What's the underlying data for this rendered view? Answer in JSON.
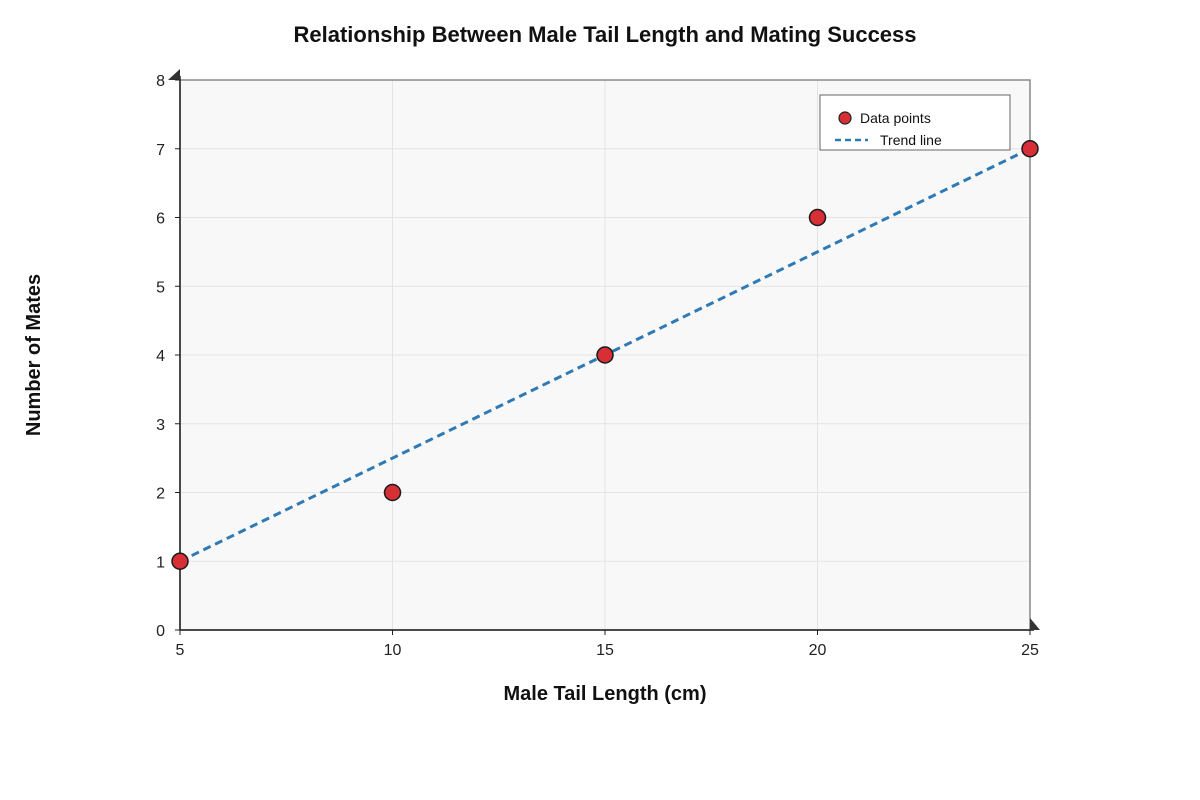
{
  "chart_data": {
    "type": "scatter",
    "title": "Relationship Between Male Tail Length and Mating Success",
    "xlabel": "Male Tail Length (cm)",
    "ylabel": "Number of Mates",
    "xlim": [
      5,
      25
    ],
    "ylim": [
      0,
      8
    ],
    "xticks": [
      5,
      10,
      15,
      20,
      25
    ],
    "yticks": [
      0,
      1,
      2,
      3,
      4,
      5,
      6,
      7,
      8
    ],
    "grid": true,
    "legend_position": "top-right",
    "series": [
      {
        "name": "Data points",
        "kind": "scatter",
        "color": "#d62f36",
        "x": [
          5,
          10,
          15,
          20,
          25
        ],
        "y": [
          1,
          2,
          4,
          6,
          7
        ]
      },
      {
        "name": "Trend line",
        "kind": "line",
        "style": "dashed",
        "color": "#2f7ab5",
        "x": [
          5,
          25
        ],
        "y": [
          1,
          7
        ]
      }
    ]
  }
}
